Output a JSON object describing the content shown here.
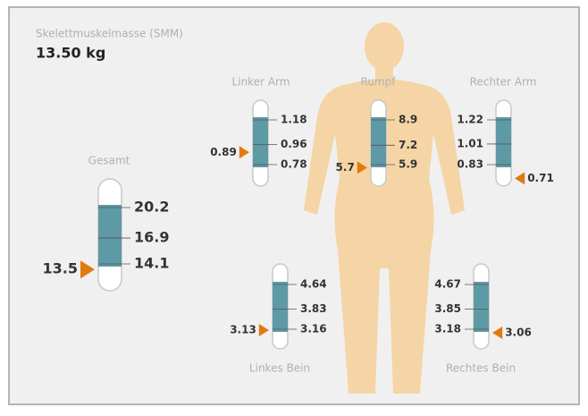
{
  "header": {
    "title": "Skelettmuskelmasse (SMM)",
    "value": "13.50 kg"
  },
  "gauges": [
    {
      "label": "Gesamt",
      "scale": [
        20.2,
        16.9,
        14.1
      ],
      "marker": 13.5
    },
    {
      "label": "Linker Arm",
      "scale": [
        1.18,
        0.96,
        0.78
      ],
      "marker": 0.89
    },
    {
      "label": "Rumpf",
      "scale": [
        8.9,
        7.2,
        5.9
      ],
      "marker": 5.7
    },
    {
      "label": "Rechter Arm",
      "scale": [
        1.22,
        1.01,
        0.83
      ],
      "marker": 0.71
    },
    {
      "label": "Linkes Bein",
      "scale": [
        4.64,
        3.83,
        3.16
      ],
      "marker": 3.13
    },
    {
      "label": "Rechtes Bein",
      "scale": [
        4.67,
        3.85,
        3.18
      ],
      "marker": 3.06
    }
  ]
}
